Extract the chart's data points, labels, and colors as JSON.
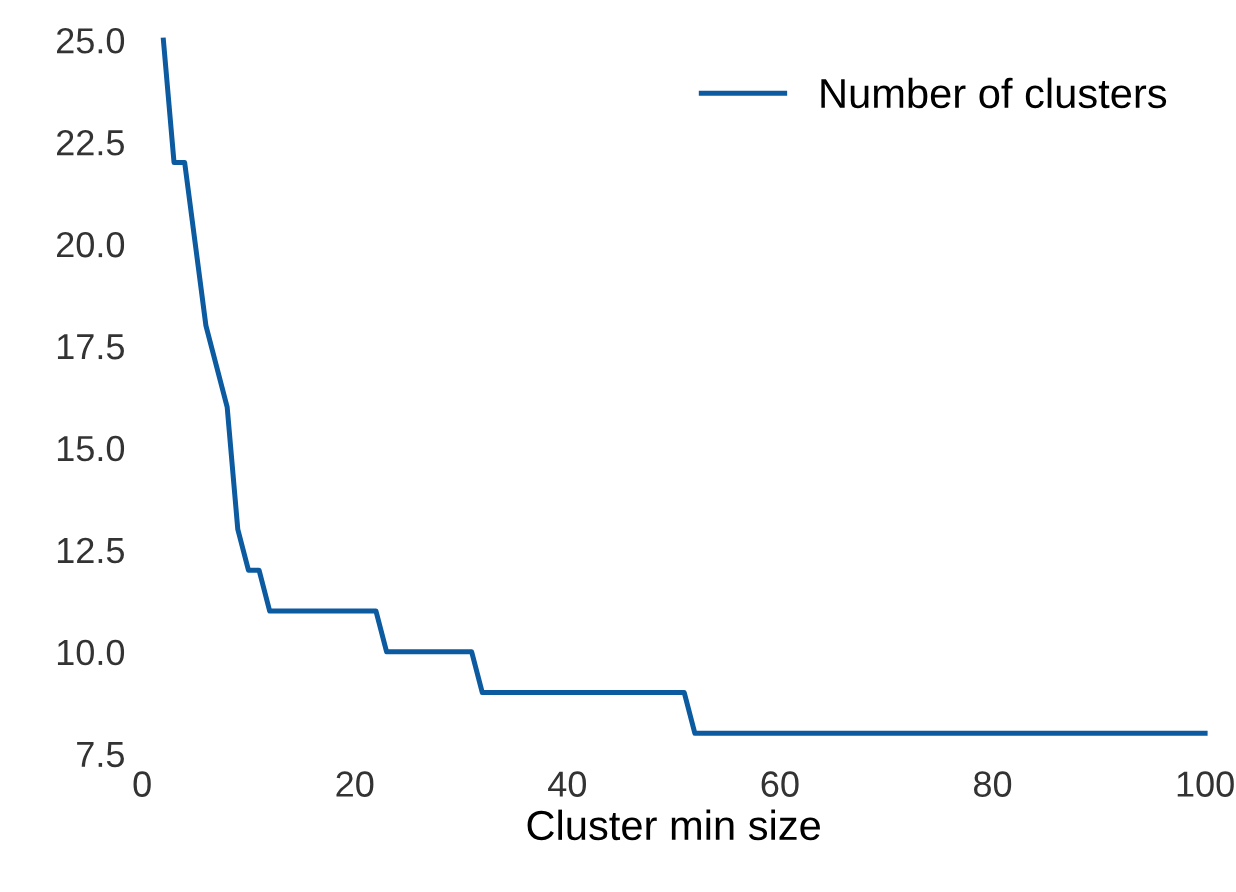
{
  "chart_data": {
    "type": "line",
    "xlabel": "Cluster min size",
    "series": [
      {
        "name": "Number of clusters",
        "color": "#0c5aa0",
        "x": [
          2,
          3,
          4,
          5,
          6,
          7,
          8,
          9,
          10,
          11,
          12,
          22,
          23,
          31,
          32,
          51,
          52,
          100
        ],
        "values": [
          25,
          22,
          22,
          20,
          18,
          17,
          16,
          13,
          12,
          12,
          11,
          11,
          10,
          10,
          9,
          9,
          8,
          8
        ]
      }
    ],
    "xlim": [
      0,
      100
    ],
    "xticks": [
      0,
      20,
      40,
      60,
      80,
      100
    ],
    "ylim": [
      7.5,
      25
    ],
    "yticks": [
      7.5,
      {
        "value": 10,
        "label": "10.0"
      },
      12.5,
      {
        "value": 15,
        "label": "15.0"
      },
      17.5,
      {
        "value": 20,
        "label": "20.0"
      },
      22.5,
      {
        "value": 25,
        "label": "25.0"
      }
    ],
    "grid": false,
    "legend": "top right",
    "marker": "none",
    "line_style": "solid"
  }
}
